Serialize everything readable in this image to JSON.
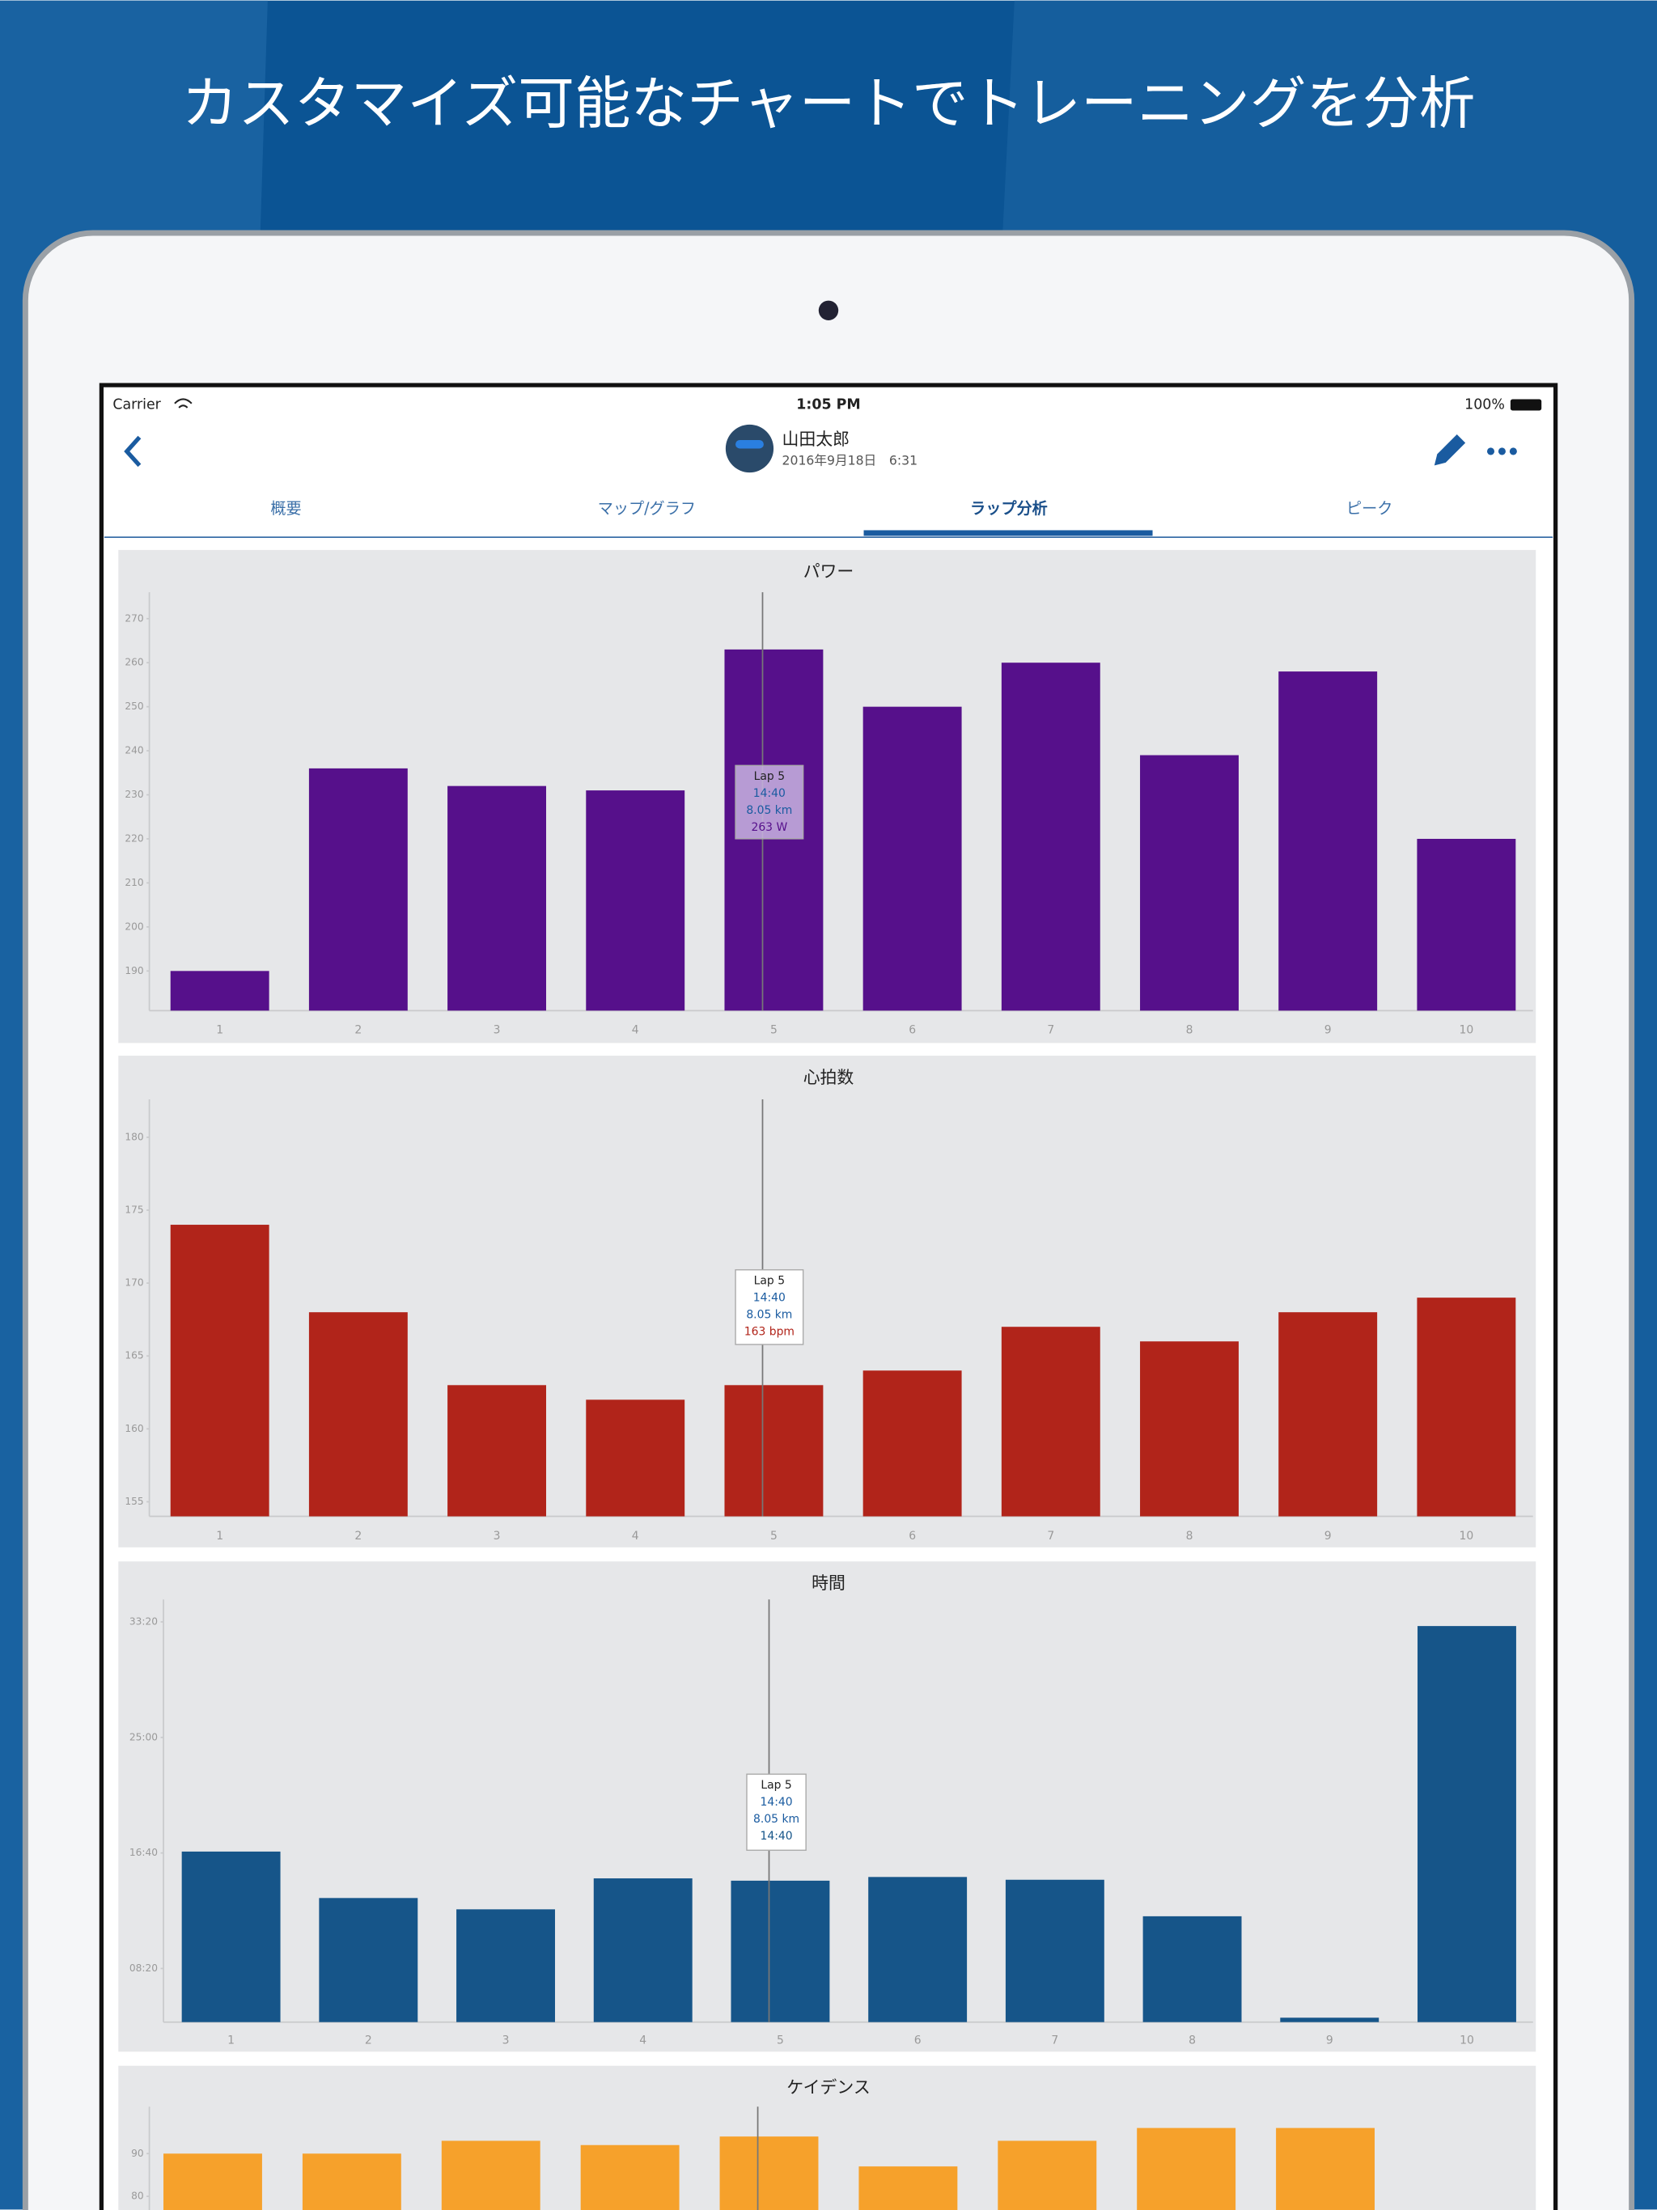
{
  "banner": {
    "title": "カスタマイズ可能なチャートでトレーニングを分析"
  },
  "status_bar": {
    "carrier": "Carrier",
    "time": "1:05 PM",
    "battery": "100%"
  },
  "nav": {
    "name": "山田太郎",
    "date": "2016年9月18日　6:31"
  },
  "tabs": [
    "概要",
    "マップ/グラフ",
    "ラップ分析",
    "ピーク"
  ],
  "chart_data": [
    {
      "type": "bar",
      "title": "パワー",
      "categories": [
        "1",
        "2",
        "3",
        "4",
        "5",
        "6",
        "7",
        "8",
        "9",
        "10"
      ],
      "values": [
        190,
        236,
        232,
        231,
        263,
        250,
        260,
        239,
        258,
        220
      ],
      "color": "#56108b",
      "ylim": [
        181,
        276
      ],
      "yticks": [
        190,
        200,
        210,
        220,
        230,
        240,
        250,
        260,
        270
      ],
      "tooltip": {
        "lap": "Lap 5",
        "time": "14:40",
        "distance": "8.05 km",
        "value": "263 W"
      }
    },
    {
      "type": "bar",
      "title": "心拍数",
      "categories": [
        "1",
        "2",
        "3",
        "4",
        "5",
        "6",
        "7",
        "8",
        "9",
        "10"
      ],
      "values": [
        174,
        168,
        163,
        162,
        163,
        164,
        167,
        166,
        168,
        169
      ],
      "color": "#b1241a",
      "ylim": [
        154,
        182.6
      ],
      "yticks": [
        155,
        160,
        165,
        170,
        175,
        180
      ],
      "tooltip": {
        "lap": "Lap 5",
        "time": "14:40",
        "distance": "8.05 km",
        "value": "163 bpm"
      }
    },
    {
      "type": "bar",
      "title": "時間",
      "categories": [
        "1",
        "2",
        "3",
        "4",
        "5",
        "6",
        "7",
        "8",
        "9",
        "10"
      ],
      "values": [
        1006,
        805,
        756,
        890,
        880,
        896,
        884,
        726,
        287,
        1982
      ],
      "color": "#165589",
      "ylim": [
        268,
        2097
      ],
      "yticks": [
        {
          "value": 500,
          "label": "08:20"
        },
        {
          "value": 1000,
          "label": "16:40"
        },
        {
          "value": 1500,
          "label": "25:00"
        },
        {
          "value": 2000,
          "label": "33:20"
        }
      ],
      "tooltip": {
        "lap": "Lap 5",
        "time": "14:40",
        "distance": "8.05 km",
        "value": "14:40"
      }
    },
    {
      "type": "bar",
      "title": "ケイデンス",
      "values": [
        90,
        90,
        93,
        92,
        94,
        87,
        93,
        96,
        96,
        null
      ],
      "color": "#f6a12b",
      "ylim": [
        70,
        101
      ],
      "yticks": [
        80,
        90
      ]
    }
  ]
}
